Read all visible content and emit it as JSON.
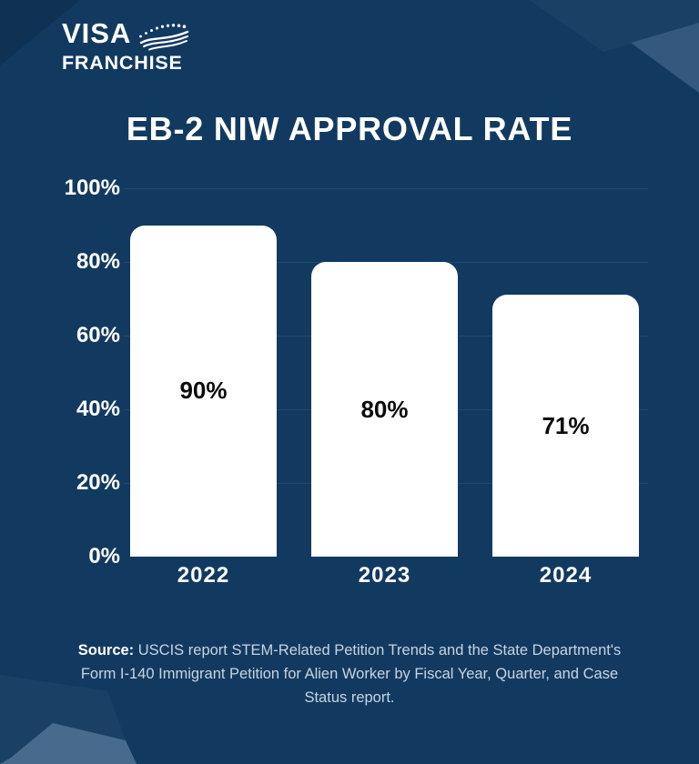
{
  "brand": {
    "line1": "VISA",
    "line2": "FRANCHISE",
    "emblem_icon": "stars-and-wave-flag"
  },
  "title": "EB-2 NIW APPROVAL RATE",
  "chart_data": {
    "type": "bar",
    "categories": [
      "2022",
      "2023",
      "2024"
    ],
    "values": [
      90,
      80,
      71
    ],
    "bar_labels": [
      "90%",
      "80%",
      "71%"
    ],
    "title": "EB-2 NIW APPROVAL RATE",
    "xlabel": "",
    "ylabel": "",
    "ylim": [
      0,
      100
    ],
    "yticks": [
      100,
      80,
      60,
      40,
      20,
      0
    ],
    "ytick_labels": [
      "100%",
      "80%",
      "60%",
      "40%",
      "20%",
      "0%"
    ],
    "grid": "faint horizontal lines every 20%",
    "legend": "none",
    "bar_color": "#ffffff",
    "bar_label_color": "#0b0b0b",
    "axis_text_color": "#ffffff"
  },
  "source": {
    "label": "Source:",
    "text": " USCIS report STEM-Related Petition Trends and the State Department's Form I-140 Immigrant Petition for Alien Worker by Fiscal Year, Quarter, and Case Status report."
  },
  "colors": {
    "background": "#123a61",
    "decor_navy": "#1b4066",
    "decor_slate_top": "#35587e",
    "decor_slate_bottom": "#486a8c",
    "decor_dark_corner": "#0e3154",
    "source_text": "#c9d3de"
  }
}
